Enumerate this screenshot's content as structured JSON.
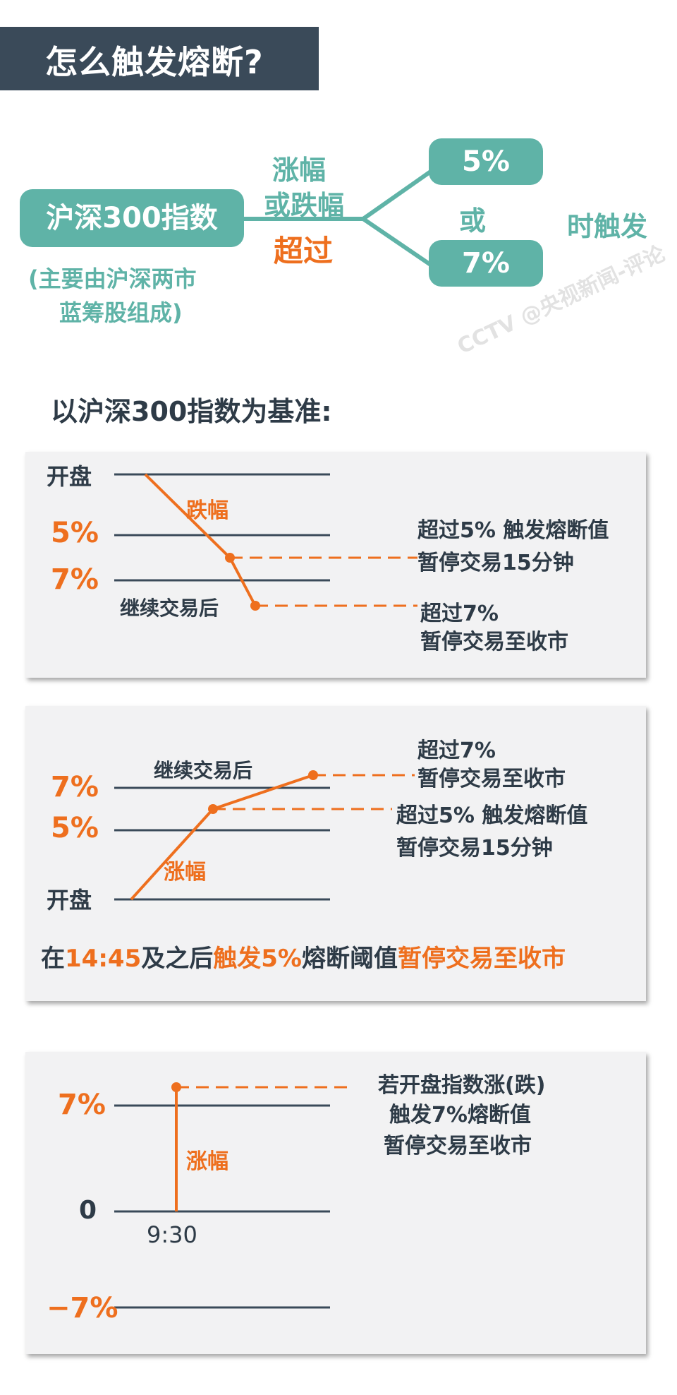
{
  "title": "怎么触发熔断?",
  "index_box": "沪深300指数",
  "index_note_line1": "(主要由沪深两市",
  "index_note_line2": "蓝筹股组成)",
  "rise_label": "涨幅",
  "fall_label": "或跌幅",
  "exceed_label": "超过",
  "pct5_box": "5%",
  "or_label": "或",
  "pct7_box": "7%",
  "trigger_label": "时触发",
  "baseline_heading": "以沪深300指数为基准:",
  "watermark": "CCTV @央视新闻-评论",
  "colors": {
    "dark": "#3a4a59",
    "teal": "#5fb3a7",
    "orange": "#ee6f1e",
    "panel": "#f2f2f3"
  },
  "panel1": {
    "open": "开盘",
    "p5": "5%",
    "p7": "7%",
    "drop": "跌幅",
    "continue": "继续交易后",
    "note1a": "超过5% 触发熔断值",
    "note1b": "暂停交易15分钟",
    "note2a": "超过7%",
    "note2b": "暂停交易至收市"
  },
  "panel2": {
    "continue": "继续交易后",
    "p7": "7%",
    "p5": "5%",
    "rise": "涨幅",
    "open": "开盘",
    "note1a": "超过7%",
    "note1b": "暂停交易至收市",
    "note2a": "超过5% 触发熔断值",
    "note2b": "暂停交易15分钟",
    "rule_part1": "在",
    "rule_time": "14:45",
    "rule_part2": "及之后",
    "rule_part3": "触发5%",
    "rule_part4": "熔断阈值",
    "rule_part5": "暂停交易至收市"
  },
  "panel3": {
    "p7": "7%",
    "zero": "0",
    "n7": "−7%",
    "rise": "涨幅",
    "time": "9:30",
    "note_a": "若开盘指数涨(跌)",
    "note_b": "触发7%熔断值",
    "note_c": "暂停交易至收市"
  }
}
